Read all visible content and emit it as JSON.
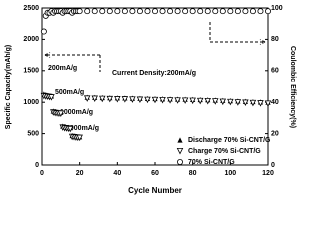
{
  "chart_data": {
    "type": "scatter",
    "xlabel": "Cycle Number",
    "ylabel": "Specific Capacity(mAh/g)",
    "y2label": "Coulombic Efficiency(%)",
    "xlim": [
      0,
      120
    ],
    "xticks": [
      0,
      20,
      40,
      60,
      80,
      100,
      120
    ],
    "ylim": [
      0,
      2500
    ],
    "yticks": [
      0,
      500,
      1000,
      1500,
      2000,
      2500
    ],
    "y2lim": [
      0,
      100
    ],
    "y2ticks": [
      0,
      20,
      40,
      60,
      80,
      100
    ],
    "annotations": [
      "200mA/g",
      "500mA/g",
      "1000mA/g",
      "2000mA/g",
      "Current Density:200mA/g"
    ],
    "x": [
      1,
      2,
      3,
      4,
      5,
      6,
      7,
      8,
      9,
      10,
      11,
      12,
      13,
      14,
      15,
      16,
      17,
      18,
      19,
      20,
      24,
      28,
      32,
      36,
      40,
      44,
      48,
      52,
      56,
      60,
      64,
      68,
      72,
      76,
      80,
      84,
      88,
      92,
      96,
      100,
      104,
      108,
      112,
      116,
      120
    ],
    "series": [
      {
        "name": "Discharge 70% Si-CNT/G",
        "color": "#000000",
        "marker": "triangle-filled",
        "values": [
          1130,
          1120,
          1110,
          1100,
          1100,
          860,
          850,
          845,
          840,
          840,
          620,
          610,
          600,
          600,
          595,
          470,
          460,
          455,
          450,
          450,
          1080,
          1078,
          1075,
          1072,
          1070,
          1068,
          1065,
          1062,
          1060,
          1058,
          1055,
          1052,
          1050,
          1048,
          1045,
          1042,
          1040,
          1035,
          1030,
          1025,
          1020,
          1015,
          1010,
          1005,
          1000
        ]
      },
      {
        "name": "Charge 70% Si-CNT/G",
        "color": "#000000",
        "marker": "triangle-down-open",
        "values": [
          1100,
          1095,
          1090,
          1085,
          1080,
          840,
          830,
          825,
          820,
          820,
          600,
          590,
          585,
          580,
          575,
          450,
          445,
          440,
          435,
          435,
          1060,
          1058,
          1055,
          1052,
          1050,
          1048,
          1045,
          1042,
          1040,
          1038,
          1035,
          1032,
          1030,
          1028,
          1025,
          1022,
          1020,
          1015,
          1010,
          1005,
          1000,
          995,
          990,
          985,
          980
        ]
      },
      {
        "name": "70% Si-CNT/G",
        "color": "#000000",
        "marker": "circle-open",
        "axis": "y2",
        "values": [
          85,
          95,
          97,
          97,
          98,
          97,
          98,
          98,
          98,
          98,
          97,
          98,
          98,
          98,
          98,
          97,
          98,
          98,
          98,
          98,
          98,
          98,
          98,
          98,
          98,
          98,
          98,
          98,
          98,
          98,
          98,
          98,
          98,
          98,
          98,
          98,
          98,
          98,
          98,
          98,
          98,
          98,
          98,
          98,
          98
        ]
      }
    ]
  }
}
